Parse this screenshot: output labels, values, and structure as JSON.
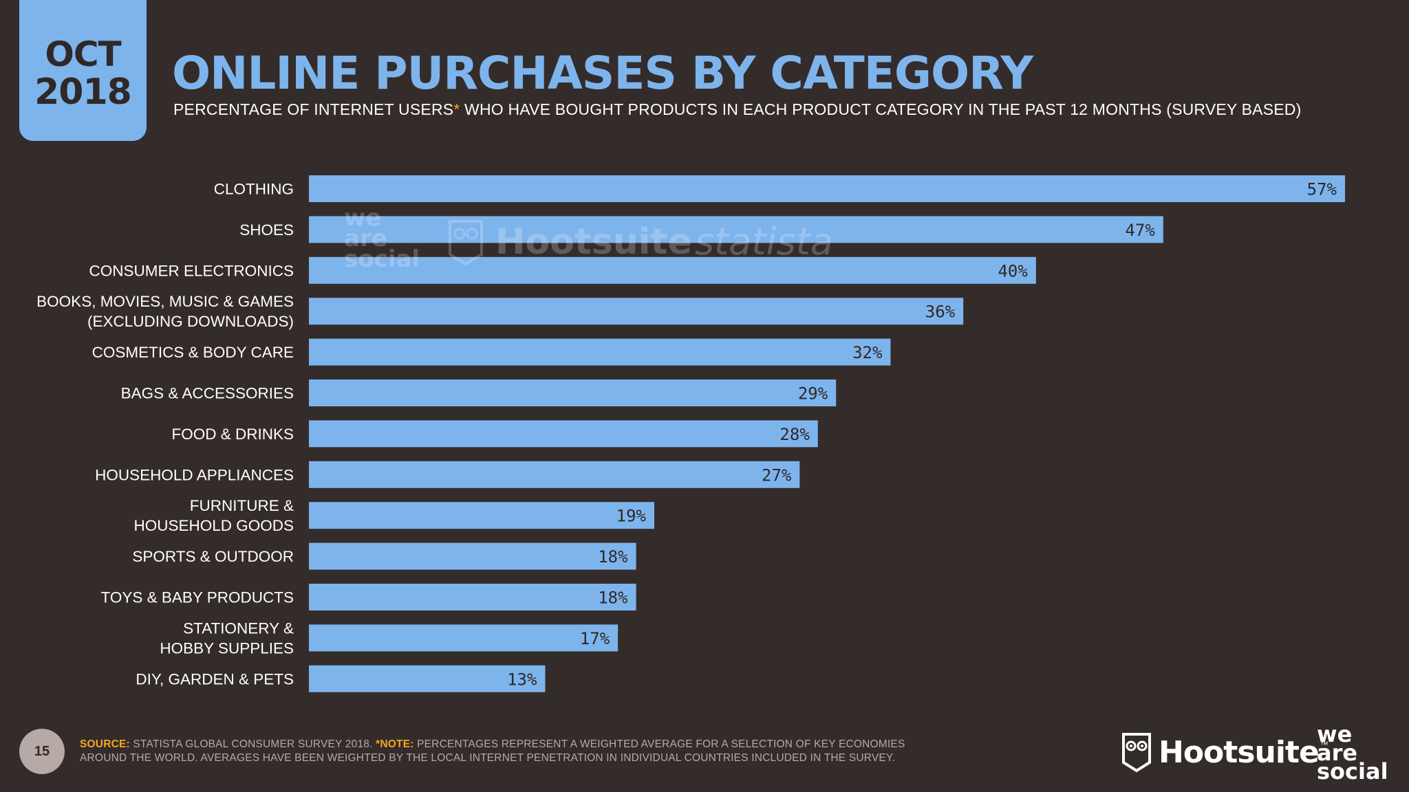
{
  "header": {
    "month": "OCT",
    "year": "2018",
    "title": "ONLINE PURCHASES BY CATEGORY",
    "subtitle_main": "PERCENTAGE OF INTERNET USERS",
    "subtitle_asterisk": "*",
    "subtitle_rest": " WHO HAVE BOUGHT PRODUCTS IN EACH PRODUCT CATEGORY IN THE PAST 12 MONTHS (SURVEY BASED)"
  },
  "watermark": {
    "was_line1": "we",
    "was_line2": "are",
    "was_line3": "social",
    "hootsuite": "Hootsuite",
    "statista": "statista"
  },
  "chart_data": {
    "type": "bar",
    "orientation": "horizontal",
    "title": "ONLINE PURCHASES BY CATEGORY",
    "categories": [
      [
        "CLOTHING"
      ],
      [
        "SHOES"
      ],
      [
        "CONSUMER ELECTRONICS"
      ],
      [
        "BOOKS, MOVIES, MUSIC & GAMES",
        "(EXCLUDING DOWNLOADS)"
      ],
      [
        "COSMETICS & BODY CARE"
      ],
      [
        "BAGS & ACCESSORIES"
      ],
      [
        "FOOD & DRINKS"
      ],
      [
        "HOUSEHOLD APPLIANCES"
      ],
      [
        "FURNITURE &",
        "HOUSEHOLD GOODS"
      ],
      [
        "SPORTS & OUTDOOR"
      ],
      [
        "TOYS & BABY PRODUCTS"
      ],
      [
        "STATIONERY &",
        "HOBBY SUPPLIES"
      ],
      [
        "DIY, GARDEN & PETS"
      ]
    ],
    "values": [
      57,
      47,
      40,
      36,
      32,
      29,
      28,
      27,
      19,
      18,
      18,
      17,
      13
    ],
    "value_labels": [
      "57%",
      "47%",
      "40%",
      "36%",
      "32%",
      "29%",
      "28%",
      "27%",
      "19%",
      "18%",
      "18%",
      "17%",
      "13%"
    ],
    "xlim": [
      0,
      57
    ],
    "bar_color": "#7eb4ec",
    "grid": false,
    "legend": "none"
  },
  "footer": {
    "page_number": "15",
    "source_label": "SOURCE:",
    "source_text": " STATISTA GLOBAL CONSUMER SURVEY 2018. ",
    "note_label": "*NOTE:",
    "note_text": " PERCENTAGES REPRESENT A WEIGHTED AVERAGE FOR A SELECTION OF KEY ECONOMIES AROUND THE WORLD. AVERAGES HAVE BEEN WEIGHTED BY THE LOCAL INTERNET PENETRATION IN INDIVIDUAL COUNTRIES INCLUDED IN THE SURVEY.",
    "brand_hootsuite": "Hootsuite",
    "brand_tm": "™",
    "brand_was_line1": "we",
    "brand_was_line2": "are",
    "brand_was_line3": "social"
  },
  "colors": {
    "background": "#342c2b",
    "accent": "#7eb4ec",
    "highlight": "#f5a623",
    "muted": "#b6aaa7"
  }
}
